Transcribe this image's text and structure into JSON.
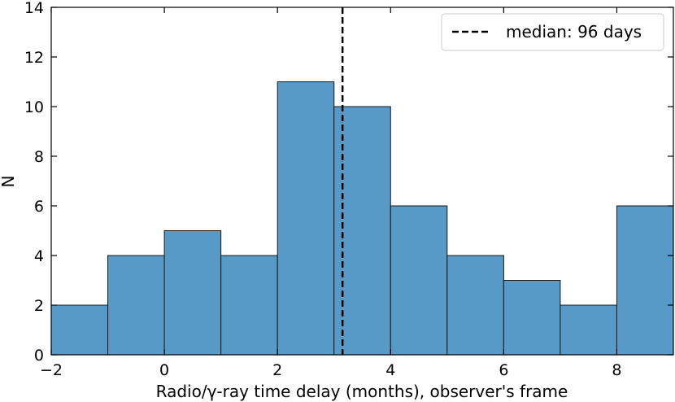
{
  "chart_data": {
    "type": "histogram",
    "title": "",
    "xlabel": "Radio/γ-ray time delay (months), observer's frame",
    "ylabel": "N",
    "xlim": [
      -2,
      9
    ],
    "ylim": [
      0,
      14
    ],
    "xticks": [
      -2,
      0,
      2,
      4,
      6,
      8
    ],
    "xtick_labels": [
      "−2",
      "0",
      "2",
      "4",
      "6",
      "8"
    ],
    "yticks": [
      0,
      2,
      4,
      6,
      8,
      10,
      12,
      14
    ],
    "bins": [
      {
        "x0": -2,
        "x1": -1,
        "count": 2
      },
      {
        "x0": -1,
        "x1": 0,
        "count": 4
      },
      {
        "x0": 0,
        "x1": 1,
        "count": 5
      },
      {
        "x0": 1,
        "x1": 2,
        "count": 4
      },
      {
        "x0": 2,
        "x1": 3,
        "count": 11
      },
      {
        "x0": 3,
        "x1": 4,
        "count": 10
      },
      {
        "x0": 4,
        "x1": 5,
        "count": 6
      },
      {
        "x0": 5,
        "x1": 6,
        "count": 4
      },
      {
        "x0": 6,
        "x1": 7,
        "count": 3
      },
      {
        "x0": 7,
        "x1": 8,
        "count": 2
      },
      {
        "x0": 8,
        "x1": 9,
        "count": 6
      }
    ],
    "median_line": {
      "x": 3.15,
      "label": "median: 96 days",
      "style": "dashed"
    },
    "legend": {
      "position": "top-right"
    },
    "grid": false,
    "colors": {
      "bar_fill": "#5799c7",
      "bar_edge": "#1a1a1a",
      "median_line": "#000000"
    }
  }
}
